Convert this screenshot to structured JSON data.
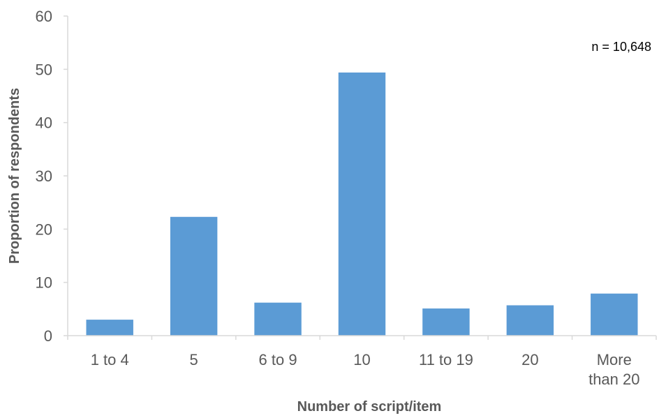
{
  "chart_data": {
    "type": "bar",
    "categories": [
      [
        "1 to 4"
      ],
      [
        "5"
      ],
      [
        "6 to 9"
      ],
      [
        "10"
      ],
      [
        "11 to 19"
      ],
      [
        "20"
      ],
      [
        "More",
        "than 20"
      ]
    ],
    "values": [
      3,
      22.3,
      6.2,
      49.4,
      5.1,
      5.7,
      7.9
    ],
    "xlabel": "Number of script/item",
    "ylabel": "Proportion of respondents",
    "ylim": [
      0,
      60
    ],
    "yticks": [
      0,
      10,
      20,
      30,
      40,
      50,
      60
    ],
    "annotation": "n = 10,648",
    "grid": false,
    "legend": "none",
    "colors": {
      "bar": "#5b9bd5",
      "axis": "#d9d9d9",
      "text": "#595959"
    }
  }
}
